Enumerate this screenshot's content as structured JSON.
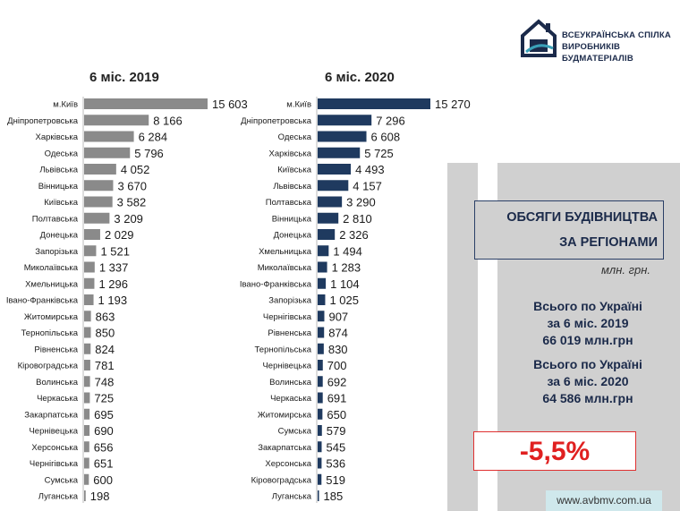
{
  "logo": {
    "line1": "ВСЕУКРАЇНСЬКА СПІЛКА",
    "line2": "ВИРОБНИКІВ БУДМАТЕРІАЛІВ"
  },
  "panel": {
    "title_line1": "ОБСЯГИ БУДІВНИЦТВА",
    "title_line2": "ЗА РЕГІОНАМИ",
    "unit": "млн. грн.",
    "total_2019_line1": "Всього по Україні",
    "total_2019_line2": "за 6 міс. 2019",
    "total_2019_line3": "66 019 млн.грн",
    "total_2020_line1": "Всього по Україні",
    "total_2020_line2": "за 6 міс. 2020",
    "total_2020_line3": "64 586 млн.грн",
    "change": "-5,5%",
    "site": "www.avbmv.com.ua"
  },
  "colors": {
    "bar_2019": "#8a8a8a",
    "bar_2020": "#1f3a5f",
    "panel_bg": "#d0d0d0",
    "change_red": "#e02020"
  },
  "chart_data": [
    {
      "type": "bar",
      "orientation": "horizontal",
      "title": "6 міс. 2019",
      "color": "#8a8a8a",
      "categories": [
        "м.Київ",
        "Дніпропетровська",
        "Харківська",
        "Одеська",
        "Львівська",
        "Вінницька",
        "Київська",
        "Полтавська",
        "Донецька",
        "Запорізька",
        "Миколаївська",
        "Хмельницька",
        "Івано-Франківська",
        "Житомирська",
        "Тернопільська",
        "Рівненська",
        "Кіровоградська",
        "Волинська",
        "Черкаська",
        "Закарпатська",
        "Чернівецька",
        "Херсонська",
        "Чернігівська",
        "Сумська",
        "Луганська"
      ],
      "values": [
        15603,
        8166,
        6284,
        5796,
        4052,
        3670,
        3582,
        3209,
        2029,
        1521,
        1337,
        1296,
        1193,
        863,
        850,
        824,
        781,
        748,
        725,
        695,
        690,
        656,
        651,
        600,
        198
      ],
      "labels": [
        "15 603",
        "8 166",
        "6 284",
        "5 796",
        "4 052",
        "3 670",
        "3 582",
        "3 209",
        "2 029",
        "1 521",
        "1 337",
        "1 296",
        "1 193",
        "863",
        "850",
        "824",
        "781",
        "748",
        "725",
        "695",
        "690",
        "656",
        "651",
        "600",
        "198"
      ]
    },
    {
      "type": "bar",
      "orientation": "horizontal",
      "title": "6 міс. 2020",
      "color": "#1f3a5f",
      "categories": [
        "м.Київ",
        "Дніпропетровська",
        "Одеська",
        "Харківська",
        "Київська",
        "Львівська",
        "Полтавська",
        "Вінницька",
        "Донецька",
        "Хмельницька",
        "Миколаївська",
        "Івано-Франківська",
        "Запорізька",
        "Чернігівська",
        "Рівненська",
        "Тернопільська",
        "Чернівецька",
        "Волинська",
        "Черкаська",
        "Житомирська",
        "Сумська",
        "Закарпатська",
        "Херсонська",
        "Кіровоградська",
        "Луганська"
      ],
      "values": [
        15270,
        7296,
        6608,
        5725,
        4493,
        4157,
        3290,
        2810,
        2326,
        1494,
        1283,
        1104,
        1025,
        907,
        874,
        830,
        700,
        692,
        691,
        650,
        579,
        545,
        536,
        519,
        185
      ],
      "labels": [
        "15 270",
        "7 296",
        "6 608",
        "5 725",
        "4 493",
        "4 157",
        "3 290",
        "2 810",
        "2 326",
        "1 494",
        "1 283",
        "1 104",
        "1 025",
        "907",
        "874",
        "830",
        "700",
        "692",
        "691",
        "650",
        "579",
        "545",
        "536",
        "519",
        "185"
      ]
    }
  ]
}
